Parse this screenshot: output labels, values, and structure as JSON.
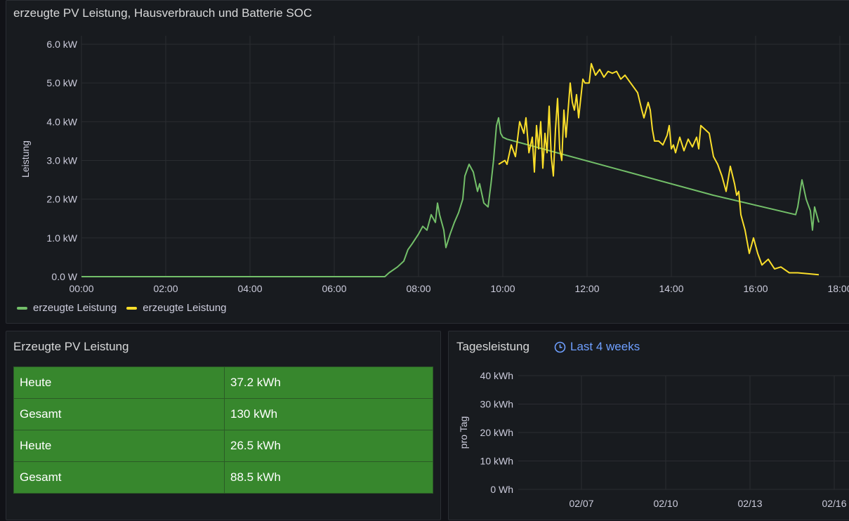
{
  "panel_power": {
    "title": "erzeugte PV Leistung, Hausverbrauch und Batterie SOC",
    "legend": [
      {
        "label": "erzeugte Leistung",
        "color": "#73bf69"
      },
      {
        "label": "erzeugte Leistung",
        "color": "#fade2a"
      }
    ]
  },
  "panel_stats": {
    "title": "Erzeugte PV Leistung",
    "rows": [
      {
        "label": "Heute",
        "value": "37.2 kWh"
      },
      {
        "label": "Gesamt",
        "value": "130 kWh"
      },
      {
        "label": "Heute",
        "value": "26.5 kWh"
      },
      {
        "label": "Gesamt",
        "value": "88.5 kWh"
      }
    ],
    "cell_color": "#37872d"
  },
  "panel_daily": {
    "title": "Tagesleistung",
    "time_range": "Last 4 weeks"
  },
  "chart_data": [
    {
      "type": "line",
      "ylabel": "Leistung",
      "y_unit": "kW",
      "ylim": [
        0,
        6
      ],
      "xlim": [
        "00:00",
        "18:00"
      ],
      "y_ticks": [
        "0.0 W",
        "1.0 kW",
        "2.0 kW",
        "3.0 kW",
        "4.0 kW",
        "5.0 kW",
        "6.0 kW"
      ],
      "x_ticks": [
        "00:00",
        "02:00",
        "04:00",
        "06:00",
        "08:00",
        "10:00",
        "12:00",
        "14:00",
        "16:00",
        "18:00"
      ],
      "grid": true,
      "legend_position": "bottom-left",
      "series": [
        {
          "name": "erzeugte Leistung",
          "color": "#73bf69",
          "points": [
            [
              0,
              0
            ],
            [
              7.2,
              0
            ],
            [
              7.3,
              0.1
            ],
            [
              7.5,
              0.25
            ],
            [
              7.65,
              0.4
            ],
            [
              7.75,
              0.7
            ],
            [
              7.85,
              0.85
            ],
            [
              8.0,
              1.1
            ],
            [
              8.1,
              1.3
            ],
            [
              8.2,
              1.2
            ],
            [
              8.3,
              1.6
            ],
            [
              8.4,
              1.4
            ],
            [
              8.45,
              1.9
            ],
            [
              8.5,
              1.6
            ],
            [
              8.6,
              1.2
            ],
            [
              8.65,
              0.75
            ],
            [
              8.75,
              1.1
            ],
            [
              8.85,
              1.4
            ],
            [
              8.95,
              1.65
            ],
            [
              9.05,
              2.0
            ],
            [
              9.1,
              2.6
            ],
            [
              9.2,
              2.9
            ],
            [
              9.3,
              2.7
            ],
            [
              9.4,
              2.2
            ],
            [
              9.45,
              2.4
            ],
            [
              9.55,
              1.9
            ],
            [
              9.65,
              1.8
            ],
            [
              9.72,
              2.4
            ],
            [
              9.78,
              3.0
            ],
            [
              9.85,
              3.9
            ],
            [
              9.9,
              4.1
            ],
            [
              9.95,
              3.7
            ],
            [
              10.0,
              3.6
            ],
            [
              10.1,
              3.55
            ],
            [
              15.0,
              2.1
            ],
            [
              16.95,
              1.6
            ],
            [
              17.0,
              1.8
            ],
            [
              17.1,
              2.5
            ],
            [
              17.2,
              2.0
            ],
            [
              17.3,
              1.7
            ],
            [
              17.35,
              1.2
            ],
            [
              17.4,
              1.8
            ],
            [
              17.5,
              1.4
            ]
          ]
        },
        {
          "name": "erzeugte Leistung",
          "color": "#fade2a",
          "points": [
            [
              9.9,
              2.9
            ],
            [
              10.05,
              3.0
            ],
            [
              10.1,
              2.9
            ],
            [
              10.2,
              3.4
            ],
            [
              10.3,
              3.1
            ],
            [
              10.4,
              4.0
            ],
            [
              10.5,
              3.7
            ],
            [
              10.55,
              4.1
            ],
            [
              10.62,
              3.2
            ],
            [
              10.7,
              3.6
            ],
            [
              10.75,
              2.7
            ],
            [
              10.8,
              3.9
            ],
            [
              10.85,
              3.3
            ],
            [
              10.9,
              4.0
            ],
            [
              10.95,
              2.8
            ],
            [
              11.0,
              3.7
            ],
            [
              11.05,
              3.2
            ],
            [
              11.1,
              4.4
            ],
            [
              11.15,
              3.1
            ],
            [
              11.2,
              2.6
            ],
            [
              11.25,
              3.8
            ],
            [
              11.3,
              4.6
            ],
            [
              11.35,
              3.3
            ],
            [
              11.4,
              3.0
            ],
            [
              11.45,
              4.3
            ],
            [
              11.5,
              3.6
            ],
            [
              11.6,
              5.0
            ],
            [
              11.65,
              4.5
            ],
            [
              11.7,
              4.3
            ],
            [
              11.75,
              4.7
            ],
            [
              11.8,
              4.1
            ],
            [
              11.85,
              4.6
            ],
            [
              11.9,
              5.1
            ],
            [
              11.95,
              5.0
            ],
            [
              12.05,
              5.0
            ],
            [
              12.1,
              5.5
            ],
            [
              12.2,
              5.2
            ],
            [
              12.3,
              5.35
            ],
            [
              12.4,
              5.15
            ],
            [
              12.5,
              5.3
            ],
            [
              12.6,
              5.25
            ],
            [
              12.7,
              5.3
            ],
            [
              12.8,
              5.1
            ],
            [
              12.9,
              5.2
            ],
            [
              13.0,
              5.05
            ],
            [
              13.1,
              4.9
            ],
            [
              13.2,
              4.75
            ],
            [
              13.3,
              4.3
            ],
            [
              13.35,
              4.1
            ],
            [
              13.45,
              4.5
            ],
            [
              13.5,
              4.3
            ],
            [
              13.55,
              3.8
            ],
            [
              13.6,
              3.5
            ],
            [
              13.7,
              3.5
            ],
            [
              13.8,
              3.4
            ],
            [
              13.9,
              3.65
            ],
            [
              13.95,
              3.9
            ],
            [
              14.0,
              3.3
            ],
            [
              14.05,
              3.4
            ],
            [
              14.1,
              3.2
            ],
            [
              14.2,
              3.6
            ],
            [
              14.3,
              3.25
            ],
            [
              14.4,
              3.55
            ],
            [
              14.5,
              3.35
            ],
            [
              14.6,
              3.6
            ],
            [
              14.65,
              3.3
            ],
            [
              14.7,
              3.9
            ],
            [
              14.8,
              3.8
            ],
            [
              14.9,
              3.7
            ],
            [
              15.0,
              3.1
            ],
            [
              15.1,
              2.9
            ],
            [
              15.2,
              2.6
            ],
            [
              15.3,
              2.2
            ],
            [
              15.4,
              2.85
            ],
            [
              15.5,
              2.4
            ],
            [
              15.55,
              2.1
            ],
            [
              15.6,
              2.2
            ],
            [
              15.65,
              1.6
            ],
            [
              15.75,
              1.2
            ],
            [
              15.85,
              0.6
            ],
            [
              15.95,
              1.0
            ],
            [
              16.05,
              0.6
            ],
            [
              16.15,
              0.3
            ],
            [
              16.3,
              0.45
            ],
            [
              16.45,
              0.2
            ],
            [
              16.6,
              0.25
            ],
            [
              16.8,
              0.1
            ],
            [
              17.0,
              0.1
            ],
            [
              17.5,
              0.05
            ]
          ]
        }
      ]
    },
    {
      "type": "bar",
      "ylabel": "pro Tag",
      "y_ticks": [
        "0 Wh",
        "10 kWh",
        "20 kWh",
        "30 kWh",
        "40 kWh"
      ],
      "ylim": [
        0,
        40
      ],
      "x_ticks": [
        "02/07",
        "02/10",
        "02/13",
        "02/16"
      ],
      "grid": true,
      "series": []
    }
  ]
}
